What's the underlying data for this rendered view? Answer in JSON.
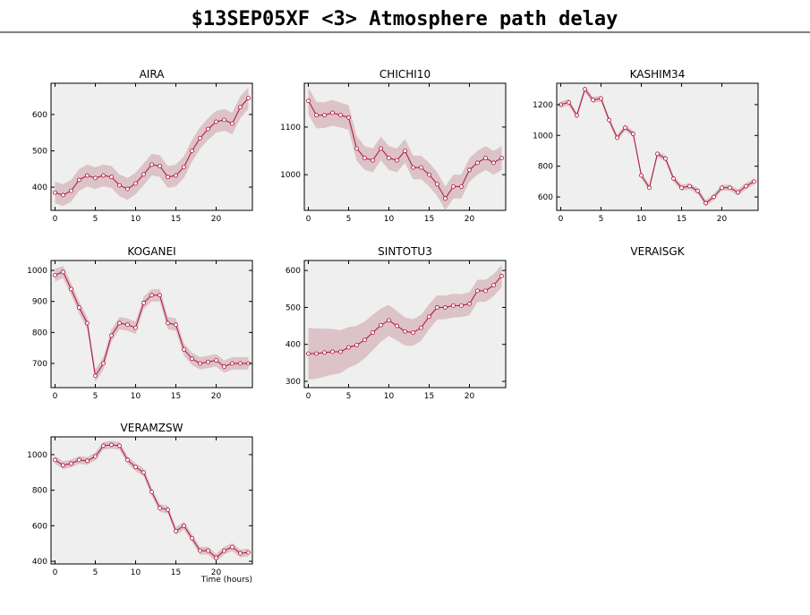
{
  "title": "$13SEP05XF <3>  Atmosphere path delay",
  "chart_data": [
    {
      "type": "line",
      "title": "AIRA",
      "x": [
        0,
        1,
        2,
        3,
        4,
        5,
        6,
        7,
        8,
        9,
        10,
        11,
        12,
        13,
        14,
        15,
        16,
        17,
        18,
        19,
        20,
        21,
        22,
        23,
        24
      ],
      "values": [
        385,
        378,
        390,
        420,
        432,
        425,
        432,
        428,
        405,
        395,
        410,
        435,
        462,
        458,
        428,
        432,
        455,
        500,
        535,
        560,
        580,
        585,
        575,
        620,
        645
      ],
      "errors": [
        30,
        30,
        30,
        30,
        30,
        30,
        30,
        30,
        30,
        30,
        30,
        30,
        30,
        30,
        30,
        30,
        30,
        30,
        30,
        30,
        30,
        30,
        30,
        30,
        30
      ],
      "color": "#b0103a",
      "band_color": "#dcc3c7",
      "xlim": [
        -0.5,
        24.5
      ],
      "ylim": [
        336,
        686
      ],
      "xticks": [
        0,
        5,
        10,
        15,
        20
      ],
      "yticks": [
        400,
        500,
        600
      ]
    },
    {
      "type": "line",
      "title": "CHICHI10",
      "x": [
        0,
        1,
        2,
        3,
        4,
        5,
        6,
        7,
        8,
        9,
        10,
        11,
        12,
        13,
        14,
        15,
        16,
        17,
        18,
        19,
        20,
        21,
        22,
        23,
        24
      ],
      "values": [
        1155,
        1125,
        1125,
        1130,
        1125,
        1120,
        1055,
        1035,
        1030,
        1055,
        1035,
        1030,
        1050,
        1015,
        1015,
        1000,
        980,
        950,
        975,
        975,
        1010,
        1025,
        1035,
        1025,
        1035
      ],
      "errors": [
        28,
        28,
        27,
        27,
        26,
        26,
        26,
        25,
        25,
        25,
        25,
        25,
        25,
        25,
        25,
        25,
        25,
        25,
        25,
        25,
        25,
        25,
        25,
        25,
        25
      ],
      "color": "#b0103a",
      "band_color": "#dcc3c7",
      "xlim": [
        -0.5,
        24.5
      ],
      "ylim": [
        925,
        1192
      ],
      "xticks": [
        0,
        5,
        10,
        15,
        20
      ],
      "yticks": [
        1000,
        1100
      ]
    },
    {
      "type": "line",
      "title": "KASHIM34",
      "x": [
        0,
        1,
        2,
        3,
        4,
        5,
        6,
        7,
        8,
        9,
        10,
        11,
        12,
        13,
        14,
        15,
        16,
        17,
        18,
        19,
        20,
        21,
        22,
        23,
        24
      ],
      "values": [
        1200,
        1215,
        1130,
        1300,
        1230,
        1240,
        1100,
        985,
        1050,
        1010,
        740,
        660,
        880,
        850,
        720,
        660,
        670,
        640,
        560,
        600,
        660,
        660,
        630,
        670,
        700
      ],
      "errors": [
        20,
        20,
        20,
        20,
        20,
        20,
        20,
        20,
        20,
        20,
        20,
        20,
        20,
        20,
        20,
        20,
        20,
        20,
        20,
        20,
        20,
        20,
        20,
        20,
        20
      ],
      "color": "#b0103a",
      "band_color": "#dcc3c7",
      "xlim": [
        -0.5,
        24.5
      ],
      "ylim": [
        513,
        1339
      ],
      "xticks": [
        0,
        5,
        10,
        15,
        20
      ],
      "yticks": [
        600,
        800,
        1000,
        1200
      ]
    },
    {
      "type": "line",
      "title": "KOGANEI",
      "x": [
        0,
        1,
        2,
        3,
        4,
        5,
        6,
        7,
        8,
        9,
        10,
        11,
        12,
        13,
        14,
        15,
        16,
        17,
        18,
        19,
        20,
        21,
        22,
        23,
        24
      ],
      "values": [
        985,
        995,
        940,
        880,
        830,
        660,
        700,
        790,
        830,
        825,
        815,
        895,
        920,
        920,
        830,
        825,
        745,
        715,
        700,
        705,
        710,
        690,
        700,
        700,
        700
      ],
      "errors": [
        20,
        20,
        20,
        20,
        20,
        20,
        20,
        20,
        20,
        20,
        20,
        20,
        20,
        20,
        20,
        20,
        20,
        20,
        20,
        20,
        20,
        20,
        20,
        20,
        20
      ],
      "color": "#b0103a",
      "band_color": "#dcc3c7",
      "xlim": [
        -0.5,
        24.5
      ],
      "ylim": [
        622,
        1032
      ],
      "xticks": [
        0,
        5,
        10,
        15,
        20
      ],
      "yticks": [
        700,
        800,
        900,
        1000
      ]
    },
    {
      "type": "line",
      "title": "SINTOTU3",
      "x": [
        0,
        1,
        2,
        3,
        4,
        5,
        6,
        7,
        8,
        9,
        10,
        11,
        12,
        13,
        14,
        15,
        16,
        17,
        18,
        19,
        20,
        21,
        22,
        23,
        24
      ],
      "values": [
        375,
        375,
        378,
        380,
        380,
        392,
        398,
        412,
        432,
        452,
        465,
        450,
        435,
        432,
        445,
        475,
        500,
        500,
        505,
        505,
        510,
        545,
        545,
        560,
        585
      ],
      "errors": [
        70,
        68,
        65,
        62,
        58,
        55,
        52,
        50,
        48,
        45,
        42,
        40,
        38,
        36,
        35,
        34,
        33,
        32,
        32,
        31,
        31,
        30,
        30,
        30,
        30
      ],
      "color": "#b0103a",
      "band_color": "#dcc3c7",
      "xlim": [
        -0.5,
        24.5
      ],
      "ylim": [
        283,
        627
      ],
      "xticks": [
        0,
        5,
        10,
        15,
        20
      ],
      "yticks": [
        300,
        400,
        500,
        600
      ]
    },
    {
      "type": "empty",
      "title": "VERAISGK"
    },
    {
      "type": "line",
      "title": "VERAMZSW",
      "x_label": "Time (hours)",
      "x": [
        0,
        1,
        2,
        3,
        4,
        5,
        6,
        7,
        8,
        9,
        10,
        11,
        12,
        13,
        14,
        15,
        16,
        17,
        18,
        19,
        20,
        21,
        22,
        23,
        24
      ],
      "values": [
        970,
        940,
        950,
        970,
        965,
        990,
        1050,
        1055,
        1050,
        970,
        930,
        900,
        790,
        700,
        690,
        570,
        600,
        530,
        460,
        460,
        420,
        460,
        480,
        445,
        450
      ],
      "errors": [
        22,
        22,
        22,
        22,
        22,
        22,
        22,
        22,
        22,
        22,
        22,
        22,
        22,
        22,
        22,
        22,
        22,
        22,
        22,
        22,
        22,
        22,
        22,
        22,
        22
      ],
      "color": "#b0103a",
      "band_color": "#dcc3c7",
      "xlim": [
        -0.5,
        24.5
      ],
      "ylim": [
        385,
        1100
      ],
      "xticks": [
        0,
        5,
        10,
        15,
        20
      ],
      "yticks": [
        400,
        600,
        800,
        1000
      ]
    }
  ]
}
